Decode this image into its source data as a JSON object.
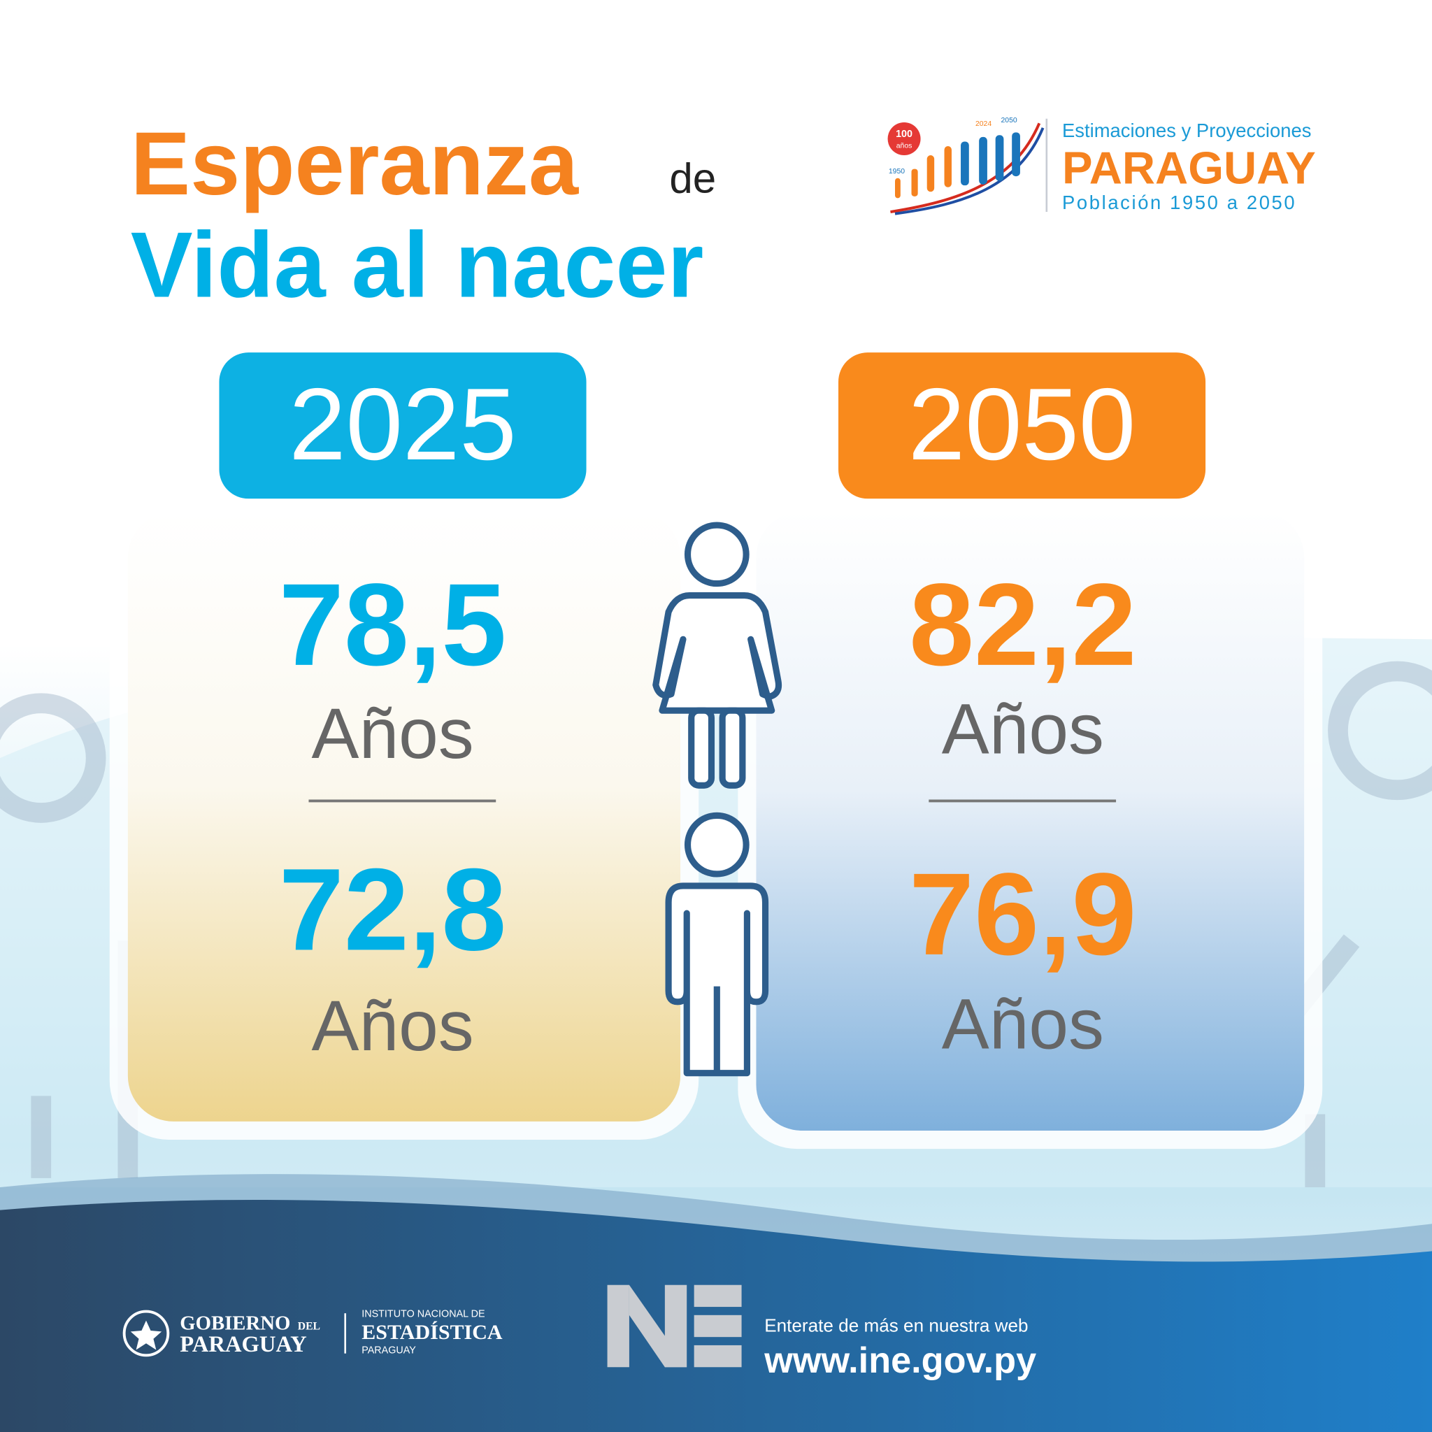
{
  "title": {
    "line1_main": "Esperanza",
    "line1_small": "de",
    "line2": "Vida al nacer"
  },
  "logo": {
    "badge": "100",
    "badge_sub": "años",
    "year_start": "1950",
    "year_mid": "2024",
    "year_end": "2050",
    "line1": "Estimaciones y Proyecciones",
    "line2": "PARAGUAY",
    "line3": "Población 1950 a 2050"
  },
  "columns": [
    {
      "year": "2025",
      "female": {
        "value": "78,5",
        "unit": "Años"
      },
      "male": {
        "value": "72,8",
        "unit": "Años"
      }
    },
    {
      "year": "2050",
      "female": {
        "value": "82,2",
        "unit": "Años"
      },
      "male": {
        "value": "76,9",
        "unit": "Años"
      }
    }
  ],
  "footer": {
    "gov_line1": "GOBIERNO",
    "gov_del": "DEL",
    "gov_line2": "PARAGUAY",
    "ine_line1": "INSTITUTO NACIONAL DE",
    "ine_line2": "ESTADÍSTICA",
    "ine_line3": "PARAGUAY",
    "cta": "Enterate de más en nuestra web",
    "url": "www.ine.gov.py"
  }
}
